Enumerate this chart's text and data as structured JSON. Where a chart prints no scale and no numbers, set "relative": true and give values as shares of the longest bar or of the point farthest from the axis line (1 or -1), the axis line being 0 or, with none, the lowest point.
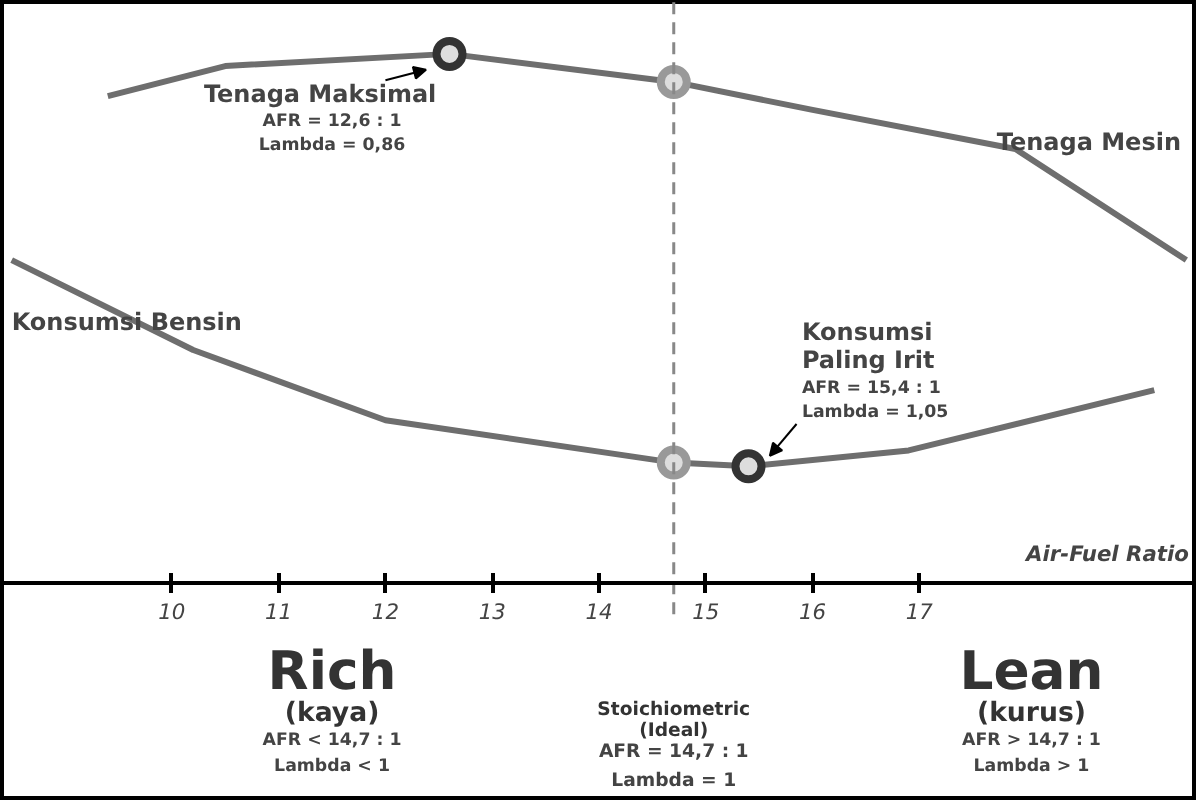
{
  "chart_data": {
    "type": "line",
    "relative": true,
    "xlabel": "Air-Fuel Ratio",
    "xlim": [
      8.4,
      19.6
    ],
    "xticks": [
      10,
      11,
      12,
      13,
      14,
      15,
      16,
      17
    ],
    "series": [
      {
        "name": "Tenaga Mesin",
        "color": "#6e6e6e",
        "x": [
          9.4,
          10.5,
          12.6,
          14.7,
          16,
          17.9,
          19.5
        ],
        "values": [
          0.92,
          0.977,
          1.0,
          0.947,
          0.894,
          0.82,
          0.61
        ]
      },
      {
        "name": "Konsumsi Bensin",
        "color": "#6e6e6e",
        "x": [
          8.5,
          10.2,
          12,
          14.7,
          15.4,
          16.9,
          19.2
        ],
        "values": [
          0.61,
          0.44,
          0.307,
          0.227,
          0.22,
          0.25,
          0.364
        ]
      },
      {
        "type": "scatter",
        "color": "#333333",
        "x": [
          12.6,
          15.4
        ],
        "values": [
          1.0,
          0.22
        ]
      },
      {
        "type": "scatter",
        "color": "#999999",
        "x": [
          14.7,
          14.7
        ],
        "values": [
          0.947,
          0.227
        ]
      }
    ],
    "line_style": "solid",
    "grid": false,
    "ref_lines": [
      {
        "axis": "x",
        "value": 14.7,
        "line_style": "dashed",
        "color": "#888888"
      }
    ],
    "annotations": [
      {
        "text": "Tenaga Maksimal\nAFR = 12,6 : 1\nLambda = 0,86",
        "x": 12.6,
        "y": 1.0
      },
      {
        "text": "Konsumsi\nPaling Irit\nAFR = 15,4 : 1\nLambda = 1,05",
        "x": 15.4,
        "y": 0.22
      },
      "Rich\n(kaya)\nAFR < 14,7 : 1\nLambda < 1",
      "Stoichiometric\n(Ideal)\nAFR = 14,7 : 1\nLambda = 1",
      "Lean\n(kurus)\nAFR > 14,7 : 1\nLambda > 1"
    ]
  }
}
